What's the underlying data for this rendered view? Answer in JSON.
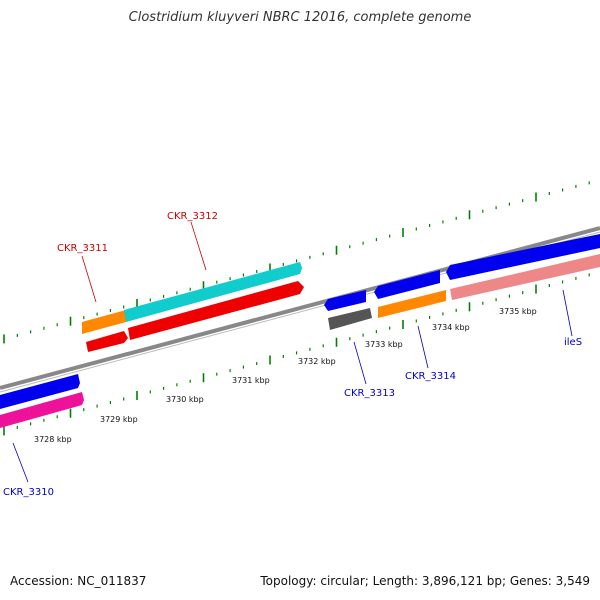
{
  "title": "Clostridium kluyveri NBRC 12016, complete genome",
  "footer": {
    "accession": "Accession: NC_011837",
    "stats": "Topology: circular; Length: 3,896,121 bp; Genes: 3,549"
  },
  "scale": [
    "3728 kbp",
    "3729 kbp",
    "3730 kbp",
    "3731 kbp",
    "3732 kbp",
    "3733 kbp",
    "3734 kbp",
    "3735 kbp"
  ],
  "genes": [
    {
      "label": "CKR_3310",
      "color": "#0000ff"
    },
    {
      "label": "CKR_3311",
      "color": "#cc0000"
    },
    {
      "label": "CKR_3312",
      "color": "#cc0000"
    },
    {
      "label": "CKR_3313",
      "color": "#0000ff"
    },
    {
      "label": "CKR_3314",
      "color": "#0000ff"
    },
    {
      "label": "ileS",
      "color": "#0000ff"
    }
  ],
  "colors": {
    "backbone": "#888888",
    "tick_dot": "#008000",
    "blue": "#0000ee",
    "magenta": "#ee1199",
    "orange": "#ff8800",
    "cyan": "#11cccc",
    "red": "#ee0000",
    "gray": "#555555",
    "salmon": "#ee8888"
  }
}
